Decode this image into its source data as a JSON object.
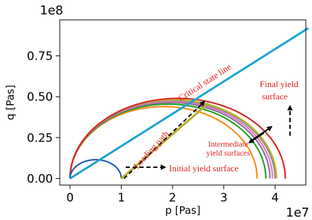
{
  "chart_data": {
    "type": "line",
    "xlabel": "p [Pas]",
    "ylabel": "q [Pas]",
    "x_offset_label": "1e7",
    "y_offset_label": "1e8",
    "xlim": [
      -2000000.0,
      46000000.0
    ],
    "ylim": [
      -4000000.0,
      97000000.0
    ],
    "x_ticks": [
      {
        "value": 0,
        "label": "0"
      },
      {
        "value": 10000000.0,
        "label": "1"
      },
      {
        "value": 20000000.0,
        "label": "2"
      },
      {
        "value": 30000000.0,
        "label": "3"
      },
      {
        "value": 40000000.0,
        "label": "4"
      }
    ],
    "y_ticks": [
      {
        "value": 0,
        "label": "0.00"
      },
      {
        "value": 25000000.0,
        "label": "0.25"
      },
      {
        "value": 50000000.0,
        "label": "0.50"
      },
      {
        "value": 75000000.0,
        "label": "0.75"
      }
    ],
    "grid": false,
    "critical_state_line": {
      "color": "#1ba3d4",
      "x": [
        0,
        46500000.0
      ],
      "y": [
        0,
        92000000.0
      ]
    },
    "loading_path": {
      "color": "#b5ad22",
      "x": [
        10000000.0,
        27000000.0
      ],
      "y": [
        0,
        46000000.0
      ]
    },
    "initial_yield_surface": {
      "color": "#1f5ea8",
      "p0": 0,
      "p1": 10000000.0,
      "qpeak": 11500000.0
    },
    "yield_surfaces": [
      {
        "color": "#ff8c14",
        "p0": 0,
        "p1": 36500000.0,
        "qpeak": 44000000.0
      },
      {
        "color": "#22a022",
        "p0": 0,
        "p1": 38200000.0,
        "qpeak": 45500000.0
      },
      {
        "color": "#8b6f9a",
        "p0": 0,
        "p1": 39000000.0,
        "qpeak": 46500000.0
      },
      {
        "color": "#e377c2",
        "p0": 0,
        "p1": 39500000.0,
        "qpeak": 47200000.0
      },
      {
        "color": "#888888",
        "p0": 0,
        "p1": 40000000.0,
        "qpeak": 47800000.0
      },
      {
        "color": "#bcbd22",
        "p0": 0,
        "p1": 40300000.0,
        "qpeak": 48200000.0
      },
      {
        "color": "#d62728",
        "p0": 0,
        "p1": 42000000.0,
        "qpeak": 49000000.0
      }
    ],
    "dashed_arrow": {
      "x": [
        10000000.0,
        26200000.0
      ],
      "y": [
        0,
        47000000.0
      ]
    },
    "annotations": {
      "critical_state_line": "Critical state line",
      "loading_path": "Loading path",
      "initial_yield_surface": "Initial yield surface",
      "intermediate_line1": "Intermediate",
      "intermediate_line2": "yield surfaces",
      "final_line1": "Final yield",
      "final_line2": "surface"
    }
  }
}
